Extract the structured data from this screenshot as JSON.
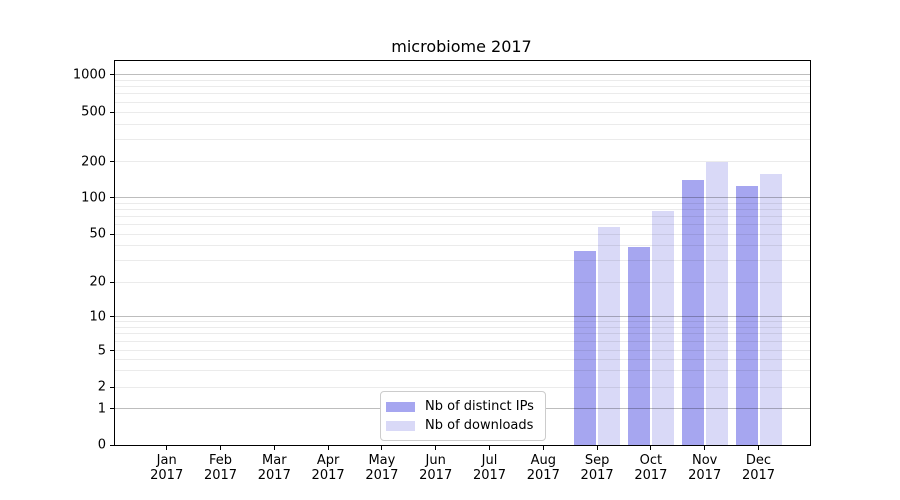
{
  "chart_data": {
    "type": "bar",
    "title": "microbiome 2017",
    "categories": [
      "Jan 2017",
      "Feb 2017",
      "Mar 2017",
      "Apr 2017",
      "May 2017",
      "Jun 2017",
      "Jul 2017",
      "Aug 2017",
      "Sep 2017",
      "Oct 2017",
      "Nov 2017",
      "Dec 2017"
    ],
    "series": [
      {
        "name": "Nb of distinct IPs",
        "color": "#a6a6f0",
        "values": [
          null,
          null,
          null,
          null,
          null,
          null,
          null,
          null,
          36,
          39,
          139,
          124
        ]
      },
      {
        "name": "Nb of downloads",
        "color": "#d9d9f7",
        "values": [
          null,
          null,
          null,
          null,
          null,
          null,
          null,
          null,
          57,
          78,
          200,
          157
        ]
      }
    ],
    "xlabel": "",
    "ylabel": "",
    "y_scale": "log-like (symlog)",
    "y_tick_values": [
      0,
      1,
      2,
      5,
      10,
      20,
      50,
      100,
      200,
      500,
      1000
    ],
    "ylim": [
      0,
      1300
    ],
    "grid": true,
    "major_grid_values": [
      1,
      10,
      100,
      1000
    ],
    "minor_grid_values": [
      2,
      3,
      4,
      5,
      6,
      7,
      8,
      9,
      20,
      30,
      40,
      50,
      60,
      70,
      80,
      90,
      200,
      300,
      400,
      500,
      600,
      700,
      800,
      900
    ],
    "legend_position": "lower center",
    "colors": {
      "axis": "#000000",
      "major_grid": "#bdbdbd",
      "minor_grid": "#ebebeb",
      "background": "#ffffff"
    }
  }
}
